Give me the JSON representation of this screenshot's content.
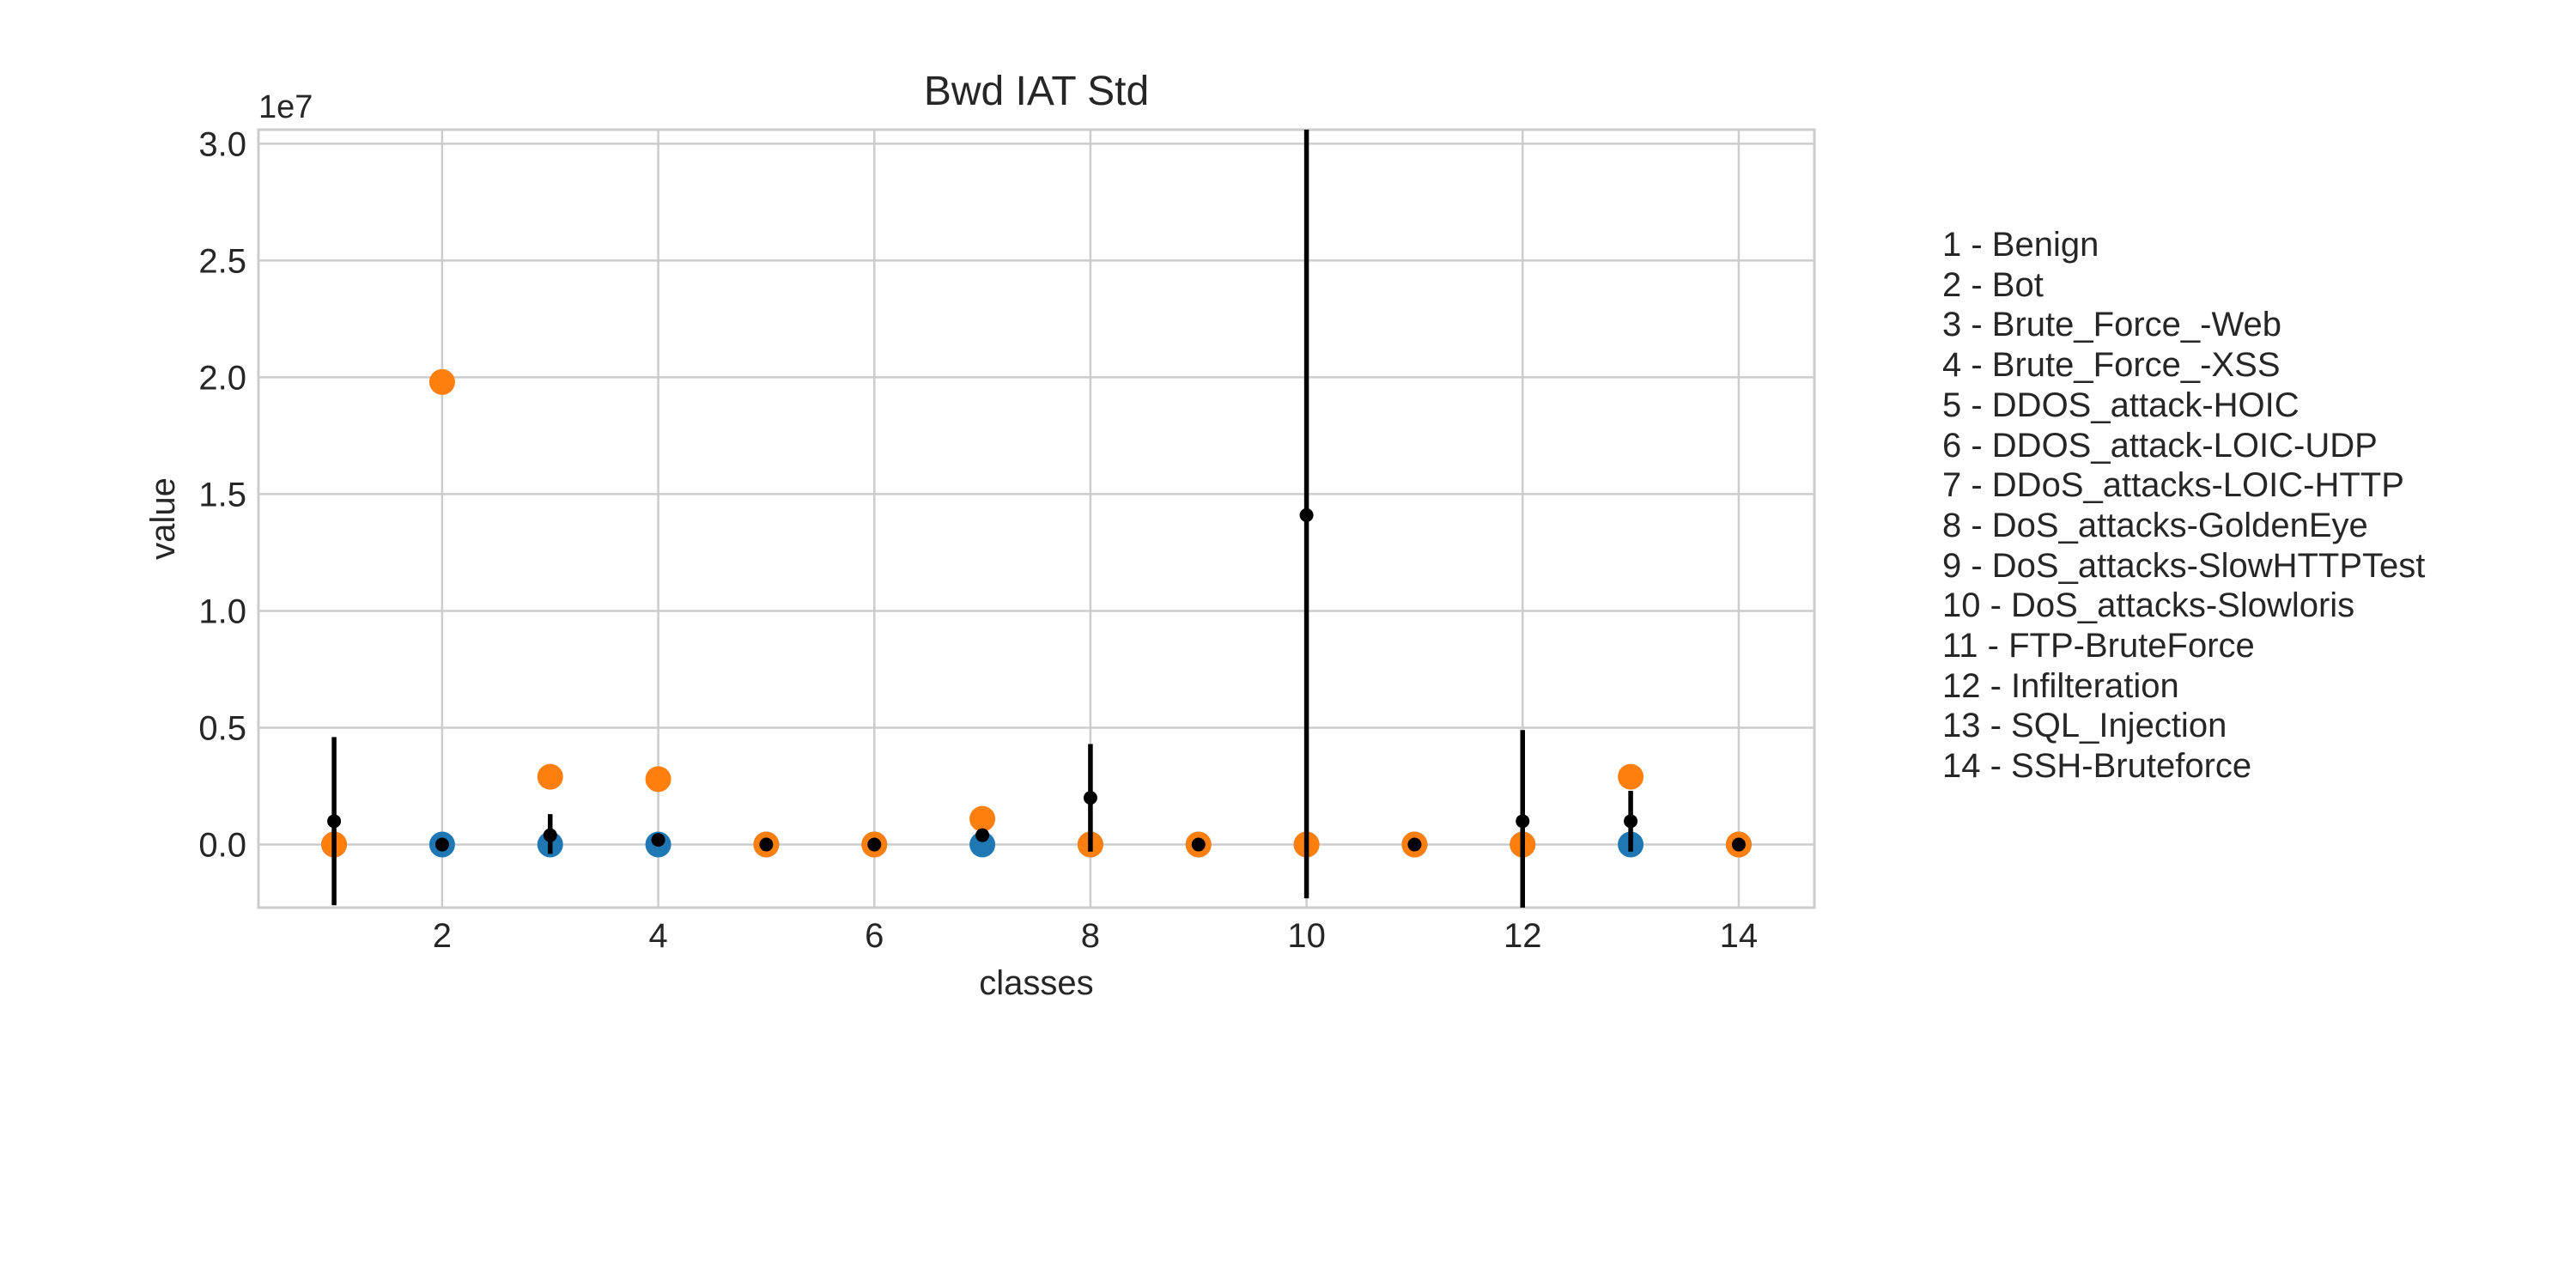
{
  "chart_data": {
    "type": "scatter",
    "title": "Bwd IAT Std",
    "xlabel": "classes",
    "ylabel": "value",
    "y_offset_label": "1e7",
    "y_scale": 10000000,
    "xlim": [
      0.3,
      14.7
    ],
    "ylim": [
      -0.27,
      3.06
    ],
    "x_ticks": [
      2,
      4,
      6,
      8,
      10,
      12,
      14
    ],
    "x_tick_labels": [
      "2",
      "4",
      "6",
      "8",
      "10",
      "12",
      "14"
    ],
    "y_ticks": [
      0.0,
      0.5,
      1.0,
      1.5,
      2.0,
      2.5,
      3.0
    ],
    "y_tick_labels": [
      "0.0",
      "0.5",
      "1.0",
      "1.5",
      "2.0",
      "2.5",
      "3.0"
    ],
    "grid": true,
    "legend_placement": "right, outside plot",
    "colors": {
      "min": "#1f77b4",
      "max": "#ff7f0e",
      "mean": "#000000",
      "grid": "#cccccc",
      "frame": "#cccccc"
    },
    "classes": [
      {
        "x": 1,
        "label": "1 - Benign",
        "min": 0.0,
        "max": 0.0,
        "mean": 0.1,
        "std_low": -0.26,
        "std_high": 0.46
      },
      {
        "x": 2,
        "label": "2 - Bot",
        "min": 0.0,
        "max": 1.98,
        "mean": 0.0,
        "std_low": 0.0,
        "std_high": 0.0
      },
      {
        "x": 3,
        "label": "3 - Brute_Force_-Web",
        "min": 0.0,
        "max": 0.29,
        "mean": 0.04,
        "std_low": -0.04,
        "std_high": 0.13
      },
      {
        "x": 4,
        "label": "4 - Brute_Force_-XSS",
        "min": 0.0,
        "max": 0.28,
        "mean": 0.02,
        "std_low": 0.0,
        "std_high": 0.04
      },
      {
        "x": 5,
        "label": "5 - DDOS_attack-HOIC",
        "min": 0.0,
        "max": 0.0,
        "mean": 0.0,
        "std_low": 0.0,
        "std_high": 0.0
      },
      {
        "x": 6,
        "label": "6 - DDOS_attack-LOIC-UDP",
        "min": 0.0,
        "max": 0.0,
        "mean": 0.0,
        "std_low": 0.0,
        "std_high": 0.0
      },
      {
        "x": 7,
        "label": "7 - DDoS_attacks-LOIC-HTTP",
        "min": 0.0,
        "max": 0.11,
        "mean": 0.04,
        "std_low": 0.02,
        "std_high": 0.06
      },
      {
        "x": 8,
        "label": "8 - DoS_attacks-GoldenEye",
        "min": 0.0,
        "max": 0.0,
        "mean": 0.2,
        "std_low": -0.03,
        "std_high": 0.43
      },
      {
        "x": 9,
        "label": "9 - DoS_attacks-SlowHTTPTest",
        "min": 0.0,
        "max": 0.0,
        "mean": 0.0,
        "std_low": 0.0,
        "std_high": 0.0
      },
      {
        "x": 10,
        "label": "10 - DoS_attacks-Slowloris",
        "min": 0.0,
        "max": 0.0,
        "mean": 1.41,
        "std_low": -0.23,
        "std_high": 3.06
      },
      {
        "x": 11,
        "label": "11 - FTP-BruteForce",
        "min": 0.0,
        "max": 0.0,
        "mean": 0.0,
        "std_low": 0.0,
        "std_high": 0.0
      },
      {
        "x": 12,
        "label": "12 - Infilteration",
        "min": 0.0,
        "max": 0.0,
        "mean": 0.1,
        "std_low": -0.27,
        "std_high": 0.49
      },
      {
        "x": 13,
        "label": "13 - SQL_Injection",
        "min": 0.0,
        "max": 0.29,
        "mean": 0.1,
        "std_low": -0.03,
        "std_high": 0.23
      },
      {
        "x": 14,
        "label": "14 - SSH-Bruteforce",
        "min": 0.0,
        "max": 0.0,
        "mean": 0.0,
        "std_low": 0.0,
        "std_high": 0.0
      }
    ]
  }
}
